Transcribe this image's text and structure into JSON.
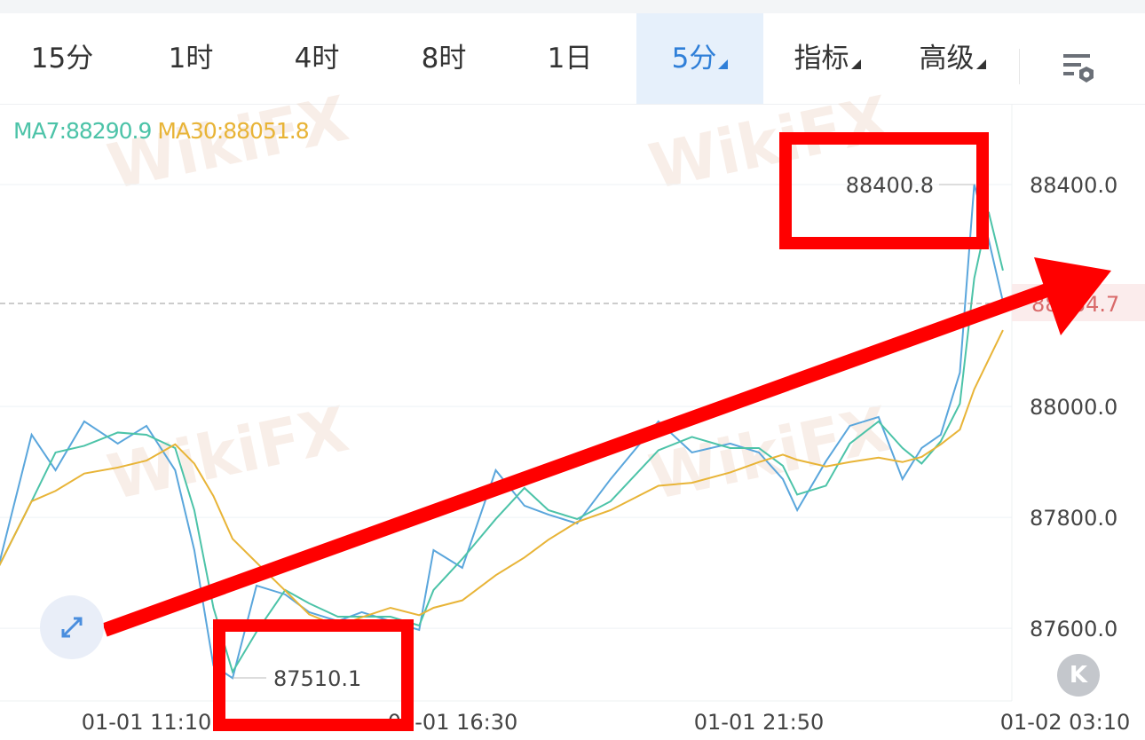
{
  "toolbar": {
    "tabs": [
      {
        "label": "15分"
      },
      {
        "label": "1时"
      },
      {
        "label": "4时"
      },
      {
        "label": "8时"
      },
      {
        "label": "1日"
      }
    ],
    "active_tab": "5分",
    "indicators_label": "指标",
    "advanced_label": "高级",
    "settings_icon": "chart-settings-icon"
  },
  "legend": {
    "ma7": "MA7:88290.9",
    "ma30": "MA30:88051.8",
    "ma7_color": "#4cc3a8",
    "ma30_color": "#e8b437"
  },
  "watermark": "WikiFX",
  "chart_data": {
    "type": "line",
    "ylim": [
      87469,
      88544
    ],
    "y_ticks": [
      "88400.0",
      "88000.0",
      "87800.0",
      "87600.0"
    ],
    "x_ticks": [
      "01-01 11:10",
      "01-01 16:30",
      "01-01 21:50",
      "01-02 03:10"
    ],
    "current_price": "88184.7",
    "current_price_color": "#e05a5a",
    "max_label": "88400.8",
    "min_label": "87510.1",
    "series": [
      {
        "color": "#5aa6dc",
        "x": [
          "01-01 08:35",
          "01-01 09:10",
          "01-01 09:35",
          "01-01 10:05",
          "01-01 10:40",
          "01-01 11:10",
          "01-01 11:40",
          "01-01 12:00",
          "01-01 12:20",
          "01-01 12:40",
          "01-01 13:05",
          "01-01 13:35",
          "01-01 14:00",
          "01-01 14:30",
          "01-01 14:55",
          "01-01 15:25",
          "01-01 15:55",
          "01-01 16:10",
          "01-01 16:40",
          "01-01 17:15",
          "01-01 17:45",
          "01-01 18:10",
          "01-01 18:40",
          "01-01 19:15",
          "01-01 20:05",
          "01-01 20:40",
          "01-01 21:20",
          "01-01 21:50",
          "01-01 22:15",
          "01-01 22:30",
          "01-01 23:00",
          "01-01 23:25",
          "01-01 23:55",
          "01-02 00:20",
          "01-02 00:40",
          "01-02 01:00",
          "01-02 01:20",
          "01-02 01:35",
          "01-02 01:50",
          "01-02 02:05"
        ],
        "values": [
          87709,
          87949,
          87885,
          87973,
          87933,
          87965,
          87885,
          87741,
          87533,
          87510.1,
          87677,
          87661,
          87629,
          87613,
          87629,
          87613,
          87597,
          87741,
          87709,
          87885,
          87821,
          87805,
          87789,
          87869,
          87973,
          87917,
          87933,
          87917,
          87869,
          87813,
          87901,
          87965,
          87981,
          87869,
          87925,
          87949,
          88061,
          88400.8,
          88301,
          88189
        ]
      }
    ]
  },
  "annotations": {
    "color": "#ff0000"
  },
  "buttons": {
    "expand_icon": "expand-icon",
    "reset_label": "K"
  }
}
